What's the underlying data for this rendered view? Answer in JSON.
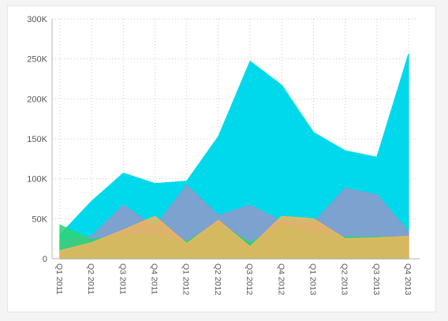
{
  "chart_data": {
    "type": "area",
    "title": "",
    "xlabel": "",
    "ylabel": "",
    "ylim": [
      0,
      300000
    ],
    "yticks": [
      {
        "value": 0,
        "label": "0"
      },
      {
        "value": 50000,
        "label": "50K"
      },
      {
        "value": 100000,
        "label": "100K"
      },
      {
        "value": 150000,
        "label": "150K"
      },
      {
        "value": 200000,
        "label": "200K"
      },
      {
        "value": 250000,
        "label": "250K"
      },
      {
        "value": 300000,
        "label": "300K"
      }
    ],
    "categories": [
      "Q1 2011",
      "Q2 2011",
      "Q3 2011",
      "Q4 2011",
      "Q1 2012",
      "Q2 2012",
      "Q3 2012",
      "Q4 2012",
      "Q1 2013",
      "Q2 2013",
      "Q3 2013",
      "Q4 2013"
    ],
    "grid": true,
    "legend": "none",
    "overlap": true,
    "series": [
      {
        "color": "#00d9ec",
        "opacity": 1.0,
        "values": [
          30000,
          72000,
          107000,
          94000,
          97000,
          153000,
          247000,
          217000,
          158000,
          135000,
          127000,
          256000
        ]
      },
      {
        "color": "#8a9bcc",
        "opacity": 0.9,
        "values": [
          22000,
          28000,
          67000,
          40000,
          92000,
          54000,
          67000,
          47000,
          45000,
          88000,
          80000,
          34000
        ]
      },
      {
        "color": "#2ed573",
        "opacity": 0.85,
        "values": [
          42000,
          24000,
          30000,
          30000,
          22000,
          45000,
          20000,
          43000,
          33000,
          27000,
          27000,
          27000
        ]
      },
      {
        "color": "#f1b55a",
        "opacity": 0.85,
        "values": [
          10000,
          20000,
          36000,
          53000,
          19000,
          48000,
          15000,
          53000,
          50000,
          25000,
          26000,
          28000
        ]
      }
    ]
  }
}
